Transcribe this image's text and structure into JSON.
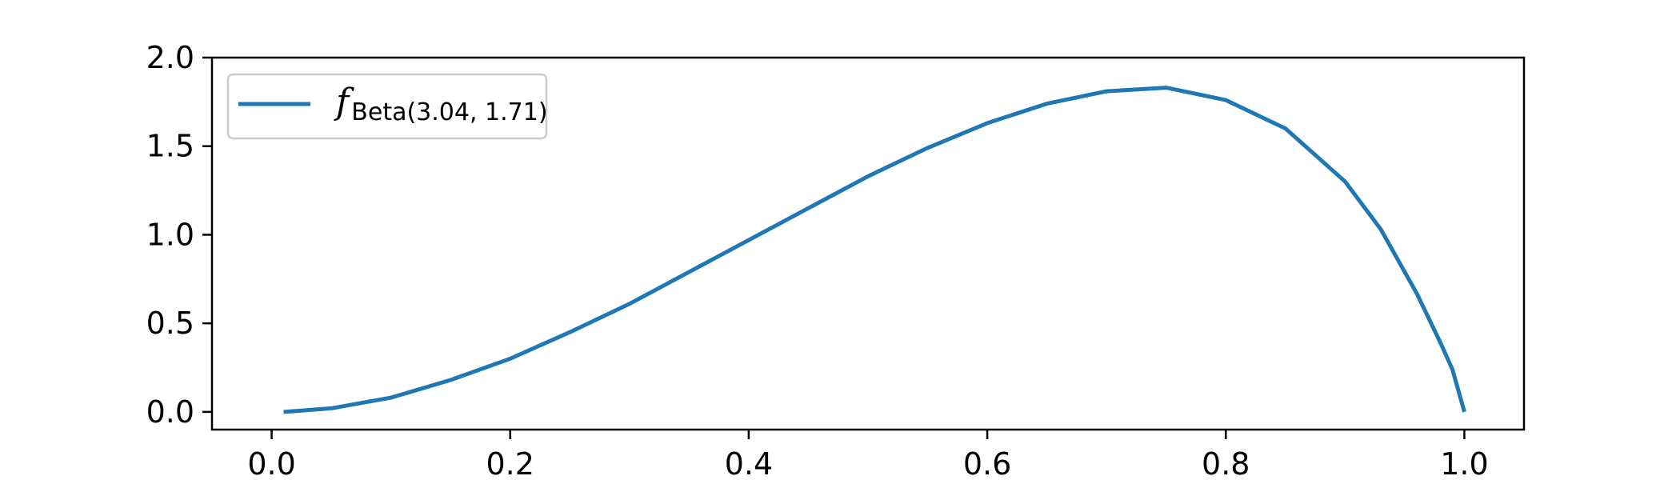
{
  "chart_data": {
    "type": "line",
    "title": "",
    "xlabel": "",
    "ylabel": "",
    "xlim": [
      -0.05,
      1.05
    ],
    "ylim": [
      -0.1,
      2.0
    ],
    "xticks": [
      "0.0",
      "0.2",
      "0.4",
      "0.6",
      "0.8",
      "1.0"
    ],
    "yticks": [
      "0.0",
      "0.5",
      "1.0",
      "1.5",
      "2.0"
    ],
    "grid": false,
    "legend_position": "upper-left",
    "series": [
      {
        "name_main": "f",
        "name_sub": "Beta(3.04, 1.71)",
        "color": "#1f77b4",
        "x": [
          0.01,
          0.05,
          0.1,
          0.15,
          0.2,
          0.25,
          0.3,
          0.35,
          0.4,
          0.45,
          0.5,
          0.55,
          0.6,
          0.65,
          0.7,
          0.75,
          0.8,
          0.85,
          0.9,
          0.93,
          0.96,
          0.98,
          0.99,
          1.0
        ],
        "y": [
          0.0,
          0.02,
          0.08,
          0.18,
          0.3,
          0.45,
          0.61,
          0.79,
          0.97,
          1.15,
          1.33,
          1.49,
          1.63,
          1.74,
          1.81,
          1.83,
          1.76,
          1.6,
          1.3,
          1.03,
          0.67,
          0.39,
          0.24,
          0.0
        ]
      }
    ]
  }
}
